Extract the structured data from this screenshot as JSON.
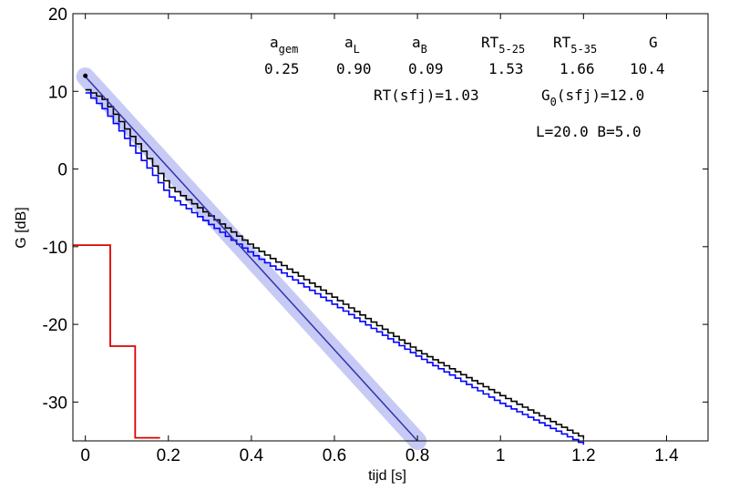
{
  "chart_data": {
    "type": "line",
    "xlabel": "tijd  [s]",
    "ylabel": "G  [dB]",
    "xlim": [
      -0.03,
      1.5
    ],
    "ylim": [
      -35,
      20
    ],
    "xticks": [
      0,
      0.2,
      0.4,
      0.6,
      0.8,
      1,
      1.2,
      1.4
    ],
    "xtick_labels": [
      "0",
      "0.2",
      "0.4",
      "0.6",
      "0.8",
      "1",
      "1.2",
      "1.4"
    ],
    "yticks": [
      20,
      10,
      0,
      -10,
      -20,
      -30
    ],
    "ytick_labels": [
      "20",
      "10",
      "0",
      "-10",
      "-20",
      "-30"
    ],
    "grid": false,
    "series": [
      {
        "color": "#000000",
        "style": "staircase",
        "x": [
          0,
          0.04,
          0.2,
          0.4,
          0.6,
          0.8,
          1.0,
          1.2
        ],
        "y": [
          10.2,
          9.0,
          -2.3,
          -10.0,
          -16.7,
          -23.5,
          -29.2,
          -34.7
        ]
      },
      {
        "color": "#0000ff",
        "style": "staircase",
        "x": [
          0,
          0.04,
          0.2,
          0.4,
          0.6,
          0.8,
          1.0,
          1.2
        ],
        "y": [
          9.8,
          7.8,
          -3.5,
          -11.0,
          -17.6,
          -24.2,
          -30.2,
          -35.5
        ]
      },
      {
        "color": "#3333aa",
        "style": "fit",
        "x": [
          0,
          0.8
        ],
        "y": [
          11.9,
          -35
        ]
      },
      {
        "color": "#dd0000",
        "style": "step",
        "x": [
          -0.03,
          0.06,
          0.06,
          0.12,
          0.12,
          0.18
        ],
        "y": [
          -9.8,
          -9.8,
          -22.8,
          -22.8,
          -34.6,
          -34.6
        ]
      }
    ],
    "point": {
      "x": 0,
      "y": 12.0
    },
    "annotations": {
      "headers": [
        {
          "base": "a",
          "sub": "gem"
        },
        {
          "base": "a",
          "sub": "L"
        },
        {
          "base": "a",
          "sub": "B"
        },
        {
          "base": "RT",
          "sub": "5-25"
        },
        {
          "base": "RT",
          "sub": "5-35"
        },
        {
          "base": "G",
          "sub": ""
        }
      ],
      "values": [
        "0.25",
        "0.90",
        "0.09",
        "1.53",
        "1.66",
        "10.4"
      ],
      "line3": {
        "a": "RT(sfj)=1.03",
        "b_base": "G",
        "b_sub": "0",
        "b_rest": "(sfj)=12.0"
      },
      "line4": "L=20.0 B=5.0"
    }
  }
}
